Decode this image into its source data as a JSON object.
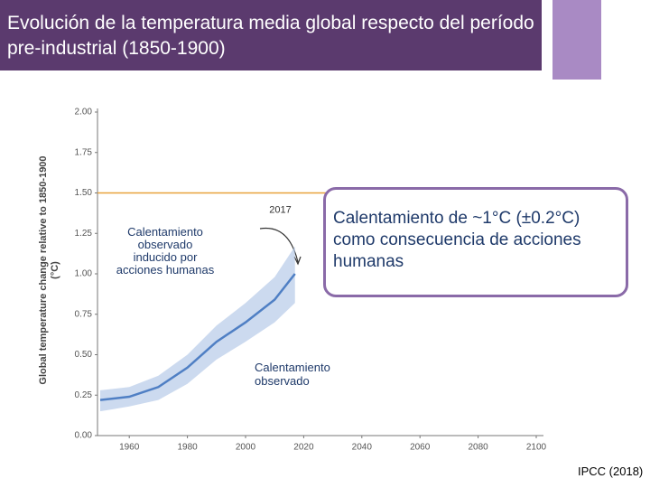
{
  "slide": {
    "title": "Evolución de la temperatura media global respecto del período pre-industrial (1850-1900)",
    "callout": "Calentamiento de ~1°C (±0.2°C) como consecuencia de acciones humanas",
    "left_note": "Calentamiento observado inducido por acciones humanas",
    "observed_note": "Calentamiento observado",
    "source": "IPCC (2018)"
  },
  "chart_data": {
    "type": "line",
    "y_label": "Global temperature change relative to 1850-1900 (°C)",
    "x": [
      1950,
      1960,
      1970,
      1980,
      1990,
      2000,
      2010,
      2017
    ],
    "series": [
      {
        "color": "#4f7fc4",
        "values": [
          0.22,
          0.24,
          0.3,
          0.42,
          0.58,
          0.7,
          0.84,
          1.0
        ]
      }
    ],
    "band": {
      "color": "#b7cbe8",
      "lower": [
        0.15,
        0.18,
        0.22,
        0.32,
        0.47,
        0.58,
        0.7,
        0.82
      ],
      "upper": [
        0.28,
        0.3,
        0.37,
        0.5,
        0.68,
        0.82,
        0.98,
        1.17
      ]
    },
    "annotation": "2017",
    "reference_line": {
      "value": 1.5,
      "color": "#e8a23a"
    },
    "xlim": [
      1950,
      2100
    ],
    "xticks": [
      1960,
      1980,
      2000,
      2020,
      2040,
      2060,
      2080,
      2100
    ],
    "ylim": [
      0,
      2
    ],
    "yticks": [
      {
        "value": 0,
        "label": "0.00"
      },
      {
        "value": 0.25,
        "label": "0.25"
      },
      {
        "value": 0.5,
        "label": "0.50"
      },
      {
        "value": 0.75,
        "label": "0.75"
      },
      {
        "value": 1,
        "label": "1.00"
      },
      {
        "value": 1.25,
        "label": "1.25"
      },
      {
        "value": 1.5,
        "label": "1.50"
      },
      {
        "value": 1.75,
        "label": "1.75"
      },
      {
        "value": 2,
        "label": "2.00"
      }
    ],
    "grid": false
  }
}
